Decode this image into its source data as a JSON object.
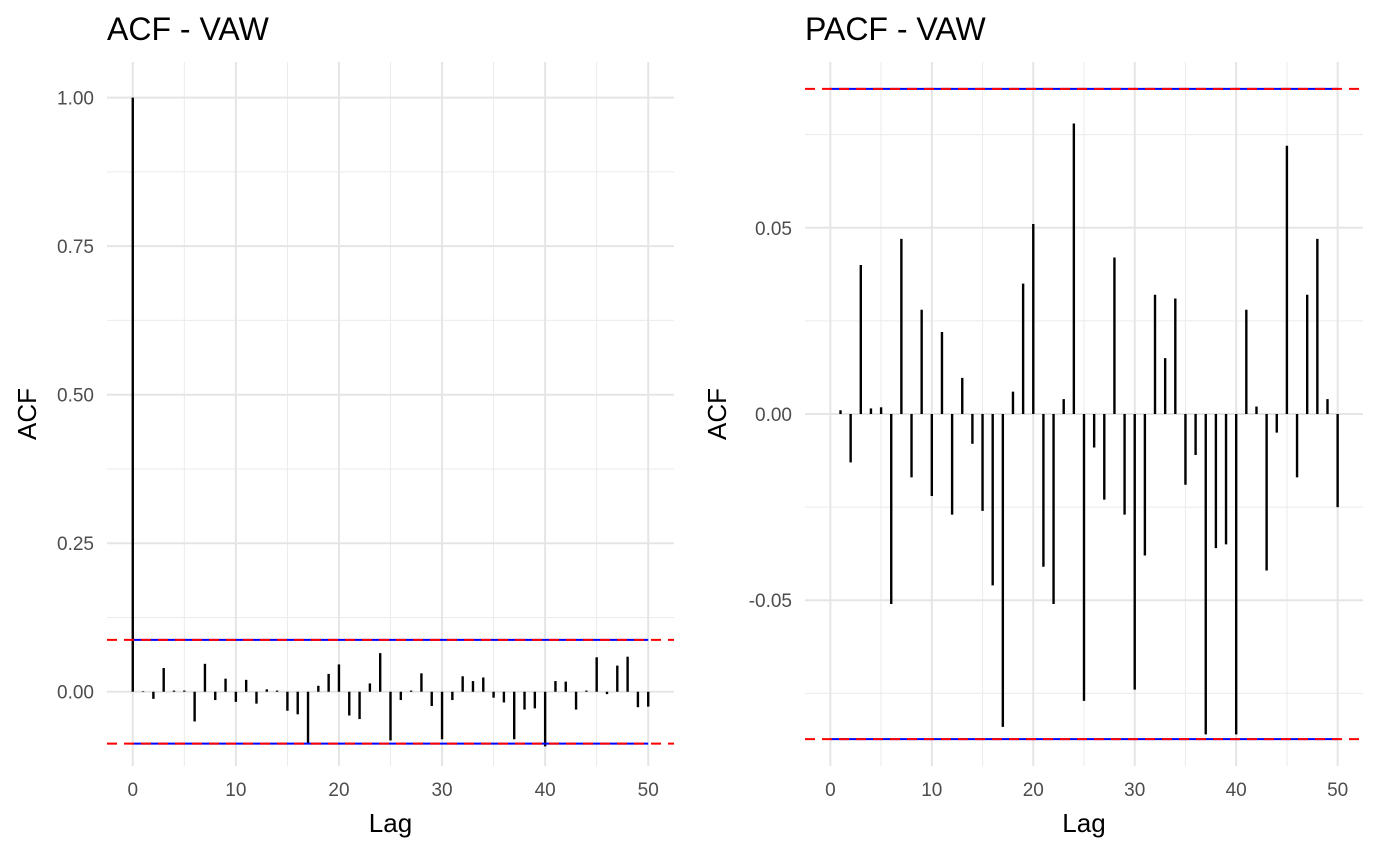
{
  "chart_data": [
    {
      "type": "bar",
      "title": "ACF - VAW",
      "xlabel": "Lag",
      "ylabel": "ACF",
      "xlim": [
        -2.5,
        52.5
      ],
      "ylim": [
        -0.125,
        1.06
      ],
      "x_ticks": [
        0,
        10,
        20,
        30,
        40,
        50
      ],
      "x_tick_labels": [
        "0",
        "10",
        "20",
        "30",
        "40",
        "50"
      ],
      "y_ticks": [
        0.0,
        0.25,
        0.5,
        0.75,
        1.0
      ],
      "y_tick_labels": [
        "0.00",
        "0.25",
        "0.50",
        "0.75",
        "1.00"
      ],
      "confidence_bounds": [
        0.0873,
        -0.0873
      ],
      "bound_color": "#ff0000",
      "bound_underline_color": "#0000ff",
      "bar_color": "#000000",
      "grid": true,
      "x": [
        0,
        1,
        2,
        3,
        4,
        5,
        6,
        7,
        8,
        9,
        10,
        11,
        12,
        13,
        14,
        15,
        16,
        17,
        18,
        19,
        20,
        21,
        22,
        23,
        24,
        25,
        26,
        27,
        28,
        29,
        30,
        31,
        32,
        33,
        34,
        35,
        36,
        37,
        38,
        39,
        40,
        41,
        42,
        43,
        44,
        45,
        46,
        47,
        48,
        49,
        50
      ],
      "values": [
        1.0,
        0.001,
        -0.012,
        0.04,
        0.002,
        0.002,
        -0.05,
        0.047,
        -0.014,
        0.022,
        -0.017,
        0.02,
        -0.02,
        0.004,
        0.002,
        -0.032,
        -0.038,
        -0.088,
        0.01,
        0.03,
        0.046,
        -0.04,
        -0.046,
        0.014,
        0.065,
        -0.082,
        -0.014,
        0.002,
        0.031,
        -0.024,
        -0.08,
        -0.014,
        0.026,
        0.018,
        0.024,
        -0.01,
        -0.018,
        -0.08,
        -0.03,
        -0.028,
        -0.092,
        0.018,
        0.017,
        -0.03,
        0.002,
        0.058,
        -0.004,
        0.044,
        0.059,
        -0.026,
        -0.025
      ]
    },
    {
      "type": "bar",
      "title": "PACF - VAW",
      "xlabel": "Lag",
      "ylabel": "ACF",
      "xlim": [
        -2.5,
        52.5
      ],
      "ylim": [
        -0.0945,
        0.0945
      ],
      "x_ticks": [
        0,
        10,
        20,
        30,
        40,
        50
      ],
      "x_tick_labels": [
        "0",
        "10",
        "20",
        "30",
        "40",
        "50"
      ],
      "y_ticks": [
        -0.05,
        0.0,
        0.05
      ],
      "y_tick_labels": [
        "-0.05",
        "0.00",
        "0.05"
      ],
      "confidence_bounds": [
        0.0873,
        -0.0873
      ],
      "bound_color": "#ff0000",
      "bound_underline_color": "#0000ff",
      "bar_color": "#000000",
      "grid": true,
      "x": [
        1,
        2,
        3,
        4,
        5,
        6,
        7,
        8,
        9,
        10,
        11,
        12,
        13,
        14,
        15,
        16,
        17,
        18,
        19,
        20,
        21,
        22,
        23,
        24,
        25,
        26,
        27,
        28,
        29,
        30,
        31,
        32,
        33,
        34,
        35,
        36,
        37,
        38,
        39,
        40,
        41,
        42,
        43,
        44,
        45,
        46,
        47,
        48,
        49,
        50
      ],
      "values": [
        0.001,
        -0.013,
        0.04,
        0.0015,
        0.0018,
        -0.051,
        0.047,
        -0.017,
        0.028,
        -0.022,
        0.022,
        -0.027,
        0.0097,
        -0.008,
        -0.026,
        -0.046,
        -0.084,
        0.006,
        0.035,
        0.051,
        -0.041,
        -0.051,
        0.004,
        0.078,
        -0.077,
        -0.009,
        -0.023,
        0.042,
        -0.027,
        -0.074,
        -0.038,
        0.032,
        0.015,
        0.031,
        -0.019,
        -0.011,
        -0.086,
        -0.036,
        -0.035,
        -0.086,
        0.028,
        0.002,
        -0.042,
        -0.005,
        0.072,
        -0.017,
        0.032,
        0.047,
        0.004,
        -0.025
      ]
    }
  ]
}
